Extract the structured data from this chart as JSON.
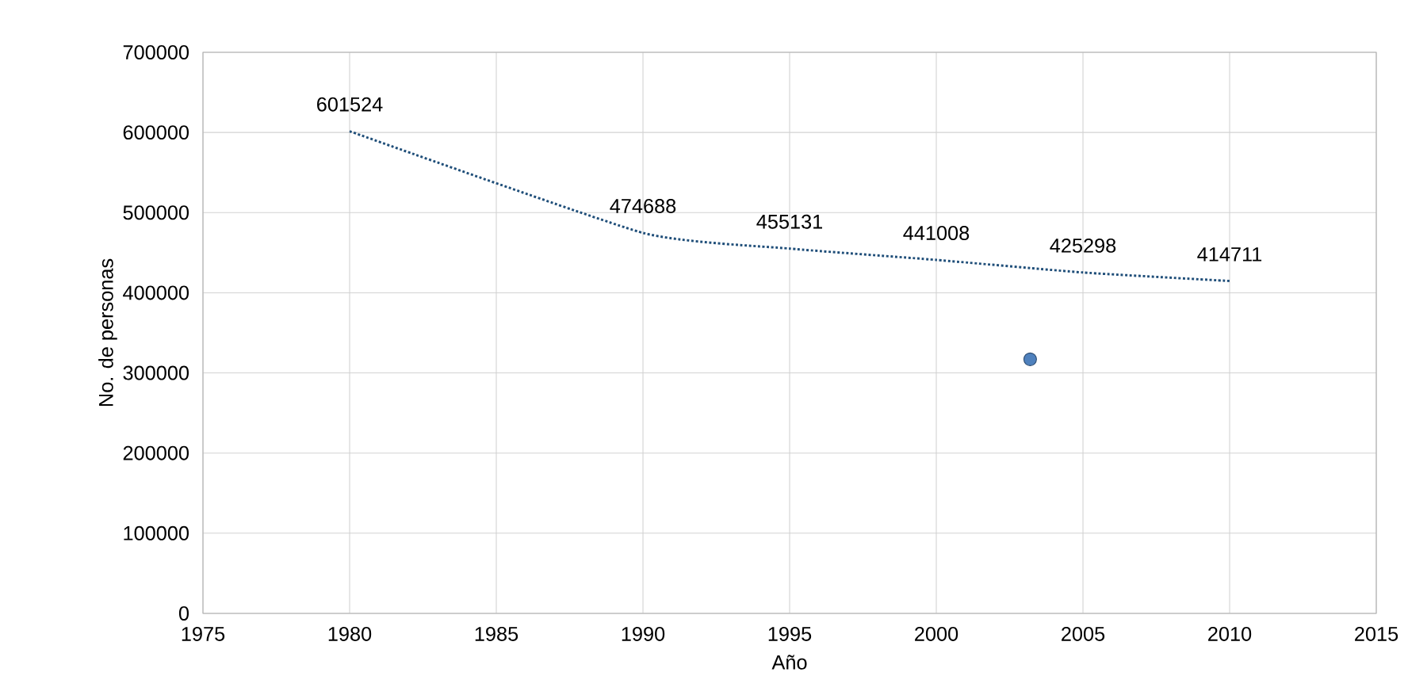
{
  "chart_data": {
    "type": "line",
    "xlabel": "Año",
    "ylabel": "No. de personas",
    "xlim": [
      1975,
      2015
    ],
    "ylim": [
      0,
      700000
    ],
    "xticks": [
      1975,
      1980,
      1985,
      1990,
      1995,
      2000,
      2005,
      2010,
      2015
    ],
    "yticks": [
      0,
      100000,
      200000,
      300000,
      400000,
      500000,
      600000,
      700000
    ],
    "grid": true,
    "line_style": "dotted",
    "series": [
      {
        "color": "#1f4e79",
        "x": [
          1980,
          1990,
          1995,
          2000,
          2005,
          2010
        ],
        "values": [
          601524,
          474688,
          455131,
          441008,
          425298,
          414711
        ],
        "value_labels": [
          "601524",
          "474688",
          "455131",
          "441008",
          "425298",
          "414711"
        ]
      },
      {
        "type": "scatter",
        "color": "#4f81bd",
        "marker": "circle",
        "x": [
          2003.2
        ],
        "values": [
          317000
        ]
      }
    ]
  }
}
